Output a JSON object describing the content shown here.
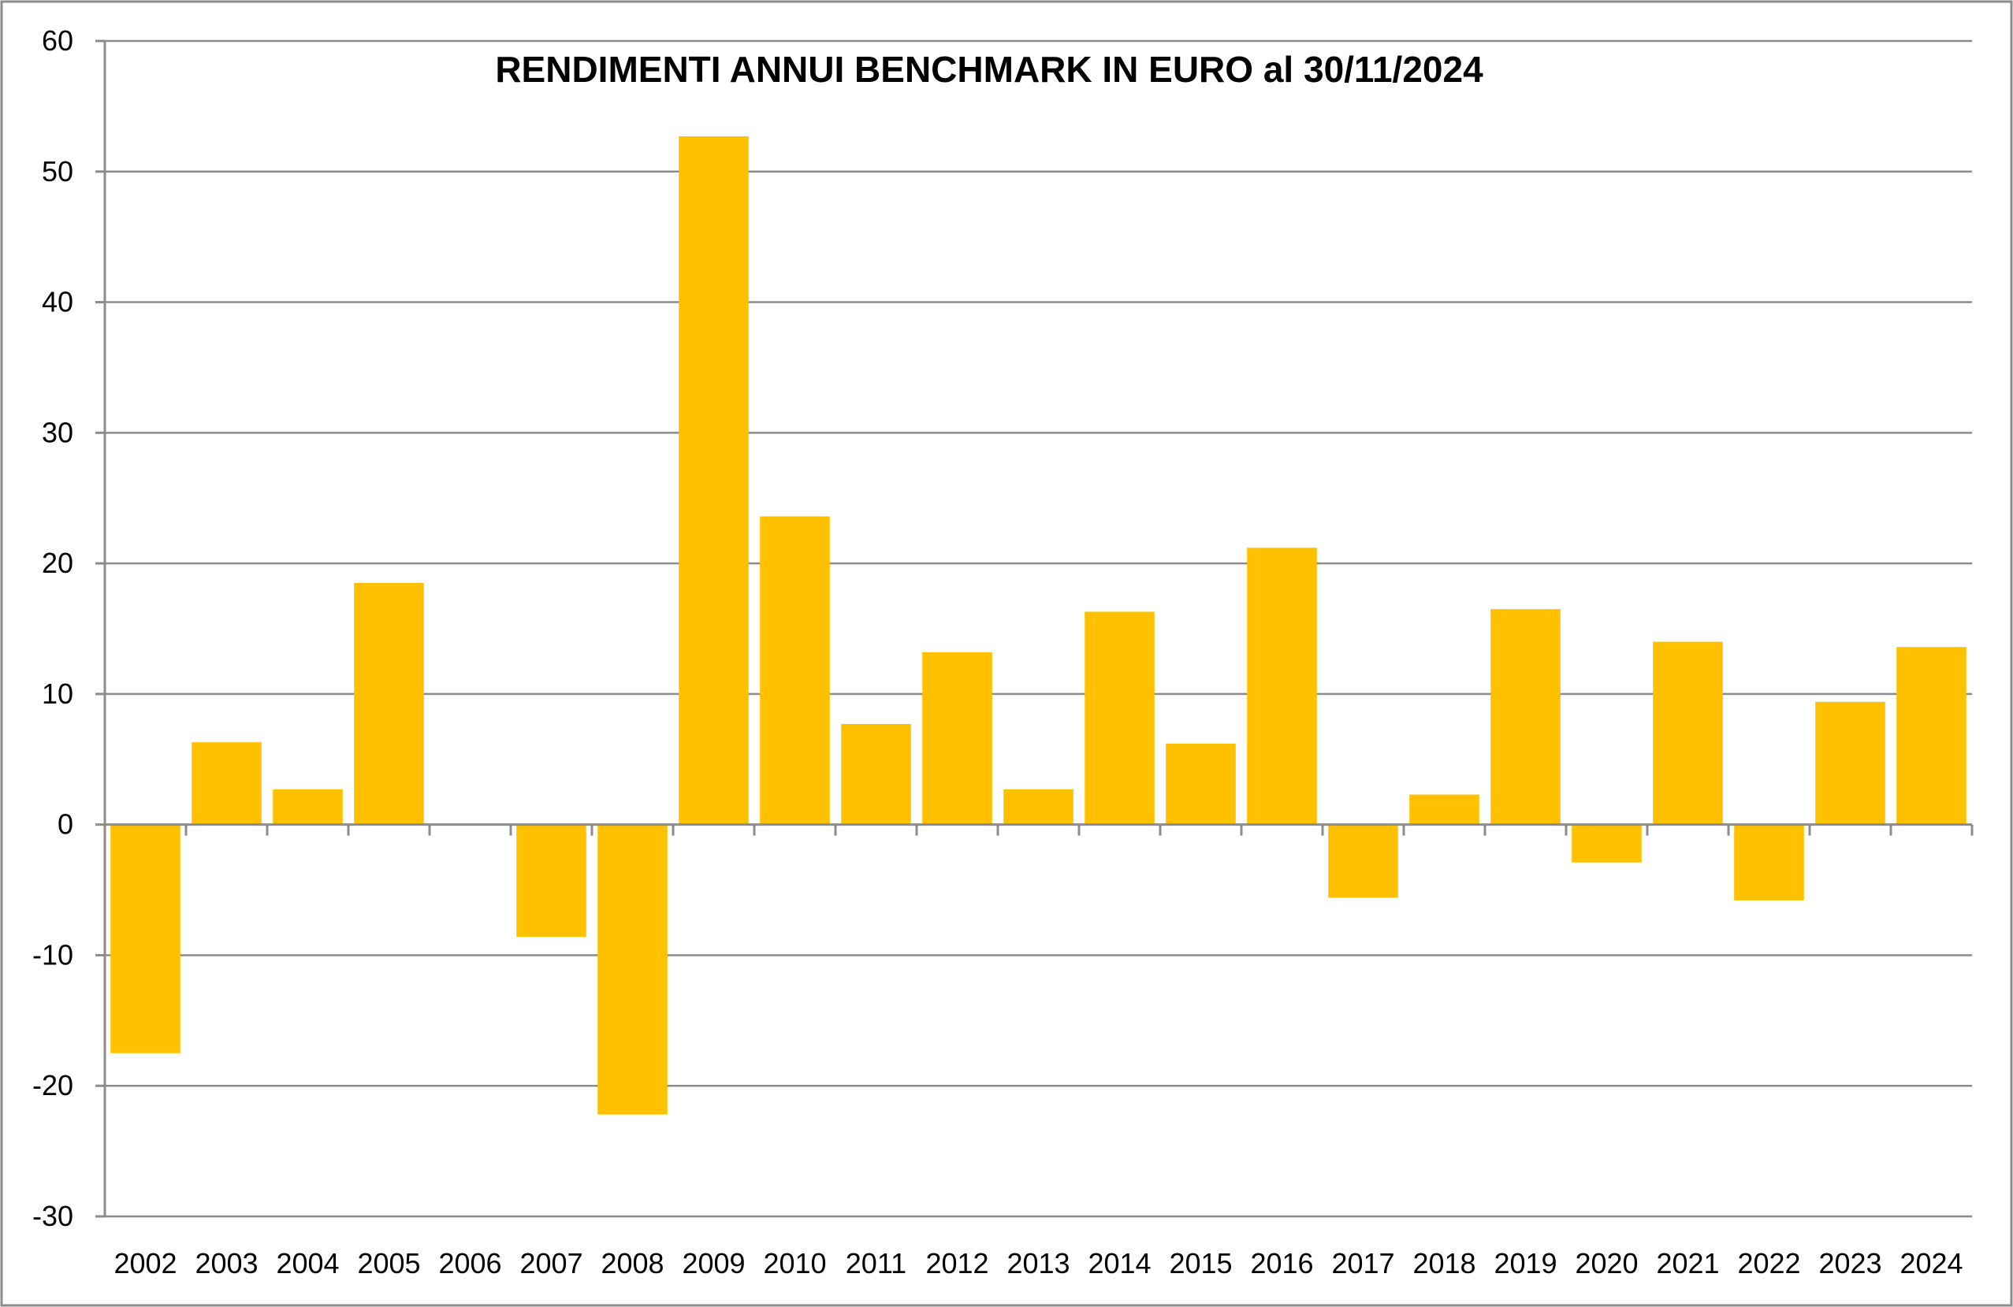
{
  "colors": {
    "bar": "#FFC000",
    "grid": "#8C8C8C",
    "axis": "#8C8C8C",
    "frame": "#8C8C8C",
    "background": "#FFFFFF",
    "text": "#000000"
  },
  "chart_data": {
    "type": "bar",
    "title": "RENDIMENTI ANNUI BENCHMARK IN EURO al 30/11/2024",
    "xlabel": "",
    "ylabel": "",
    "ylim": [
      -30,
      60
    ],
    "yticks": [
      60,
      50,
      40,
      30,
      20,
      10,
      0,
      -10,
      -20,
      -30
    ],
    "grid": true,
    "legend": "none",
    "categories": [
      "2002",
      "2003",
      "2004",
      "2005",
      "2006",
      "2007",
      "2008",
      "2009",
      "2010",
      "2011",
      "2012",
      "2013",
      "2014",
      "2015",
      "2016",
      "2017",
      "2018",
      "2019",
      "2020",
      "2021",
      "2022",
      "2023",
      "2024"
    ],
    "values": [
      -17.5,
      6.3,
      2.7,
      18.5,
      0,
      -8.6,
      -22.2,
      52.7,
      23.6,
      7.7,
      13.2,
      2.7,
      16.3,
      6.2,
      21.2,
      -5.6,
      2.3,
      16.5,
      -2.9,
      14.0,
      -5.8,
      9.4,
      13.6
    ]
  }
}
